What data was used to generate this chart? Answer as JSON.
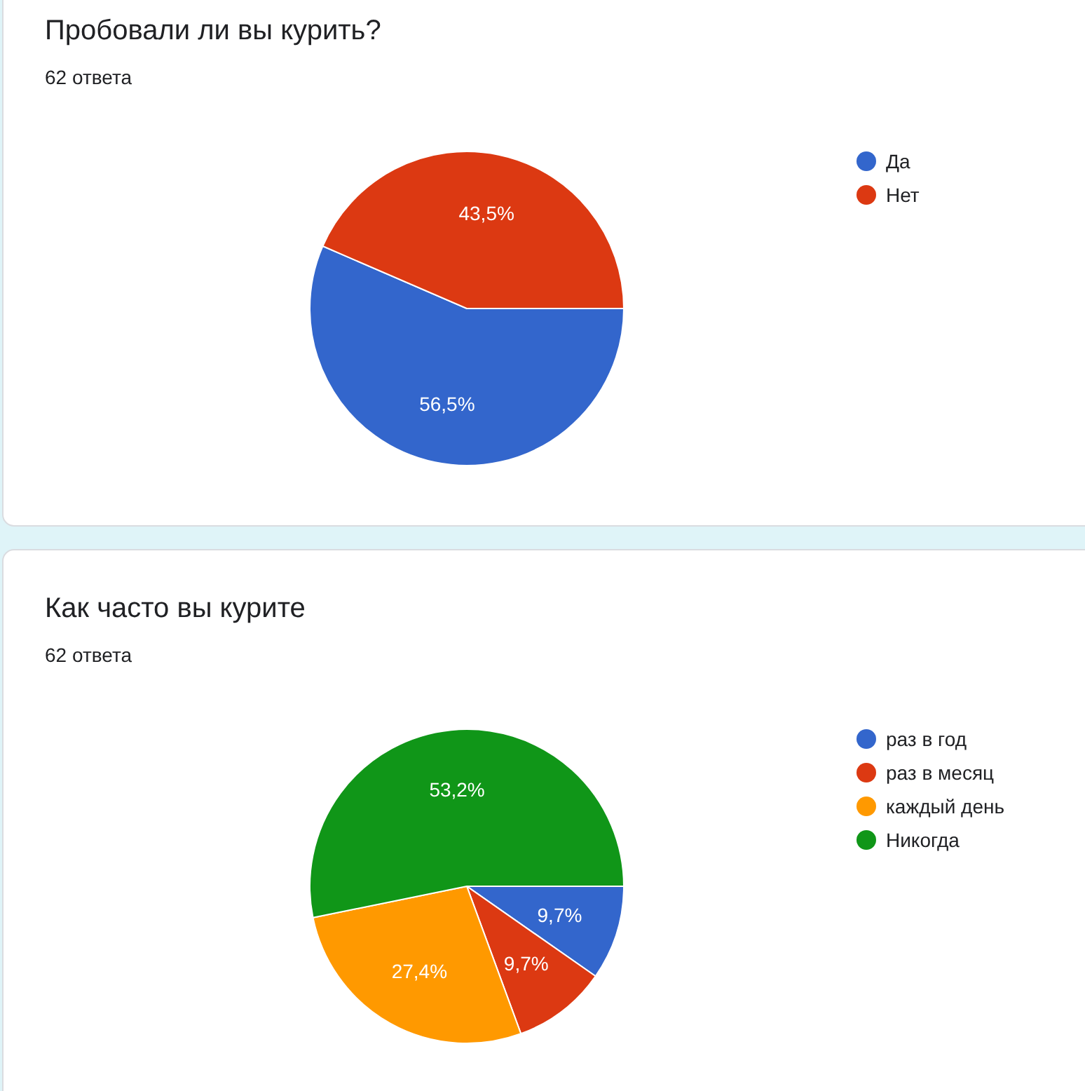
{
  "chart_data": [
    {
      "type": "pie",
      "title": "Пробовали ли вы курить?",
      "subtitle": "62 ответа",
      "categories": [
        "Да",
        "Нет"
      ],
      "values": [
        56.5,
        43.5
      ],
      "colors": [
        "#3366cc",
        "#dc3912"
      ],
      "value_labels": [
        "56,5%",
        "43,5%"
      ],
      "legend": "right"
    },
    {
      "type": "pie",
      "title": "Как часто вы курите",
      "subtitle": "62 ответа",
      "categories": [
        "раз в год",
        "раз в месяц",
        "каждый день",
        "Никогда"
      ],
      "values": [
        9.7,
        9.7,
        27.4,
        53.2
      ],
      "colors": [
        "#3366cc",
        "#dc3912",
        "#ff9900",
        "#109618"
      ],
      "value_labels": [
        "9,7%",
        "9,7%",
        "27,4%",
        "53,2%"
      ],
      "legend": "right"
    }
  ]
}
